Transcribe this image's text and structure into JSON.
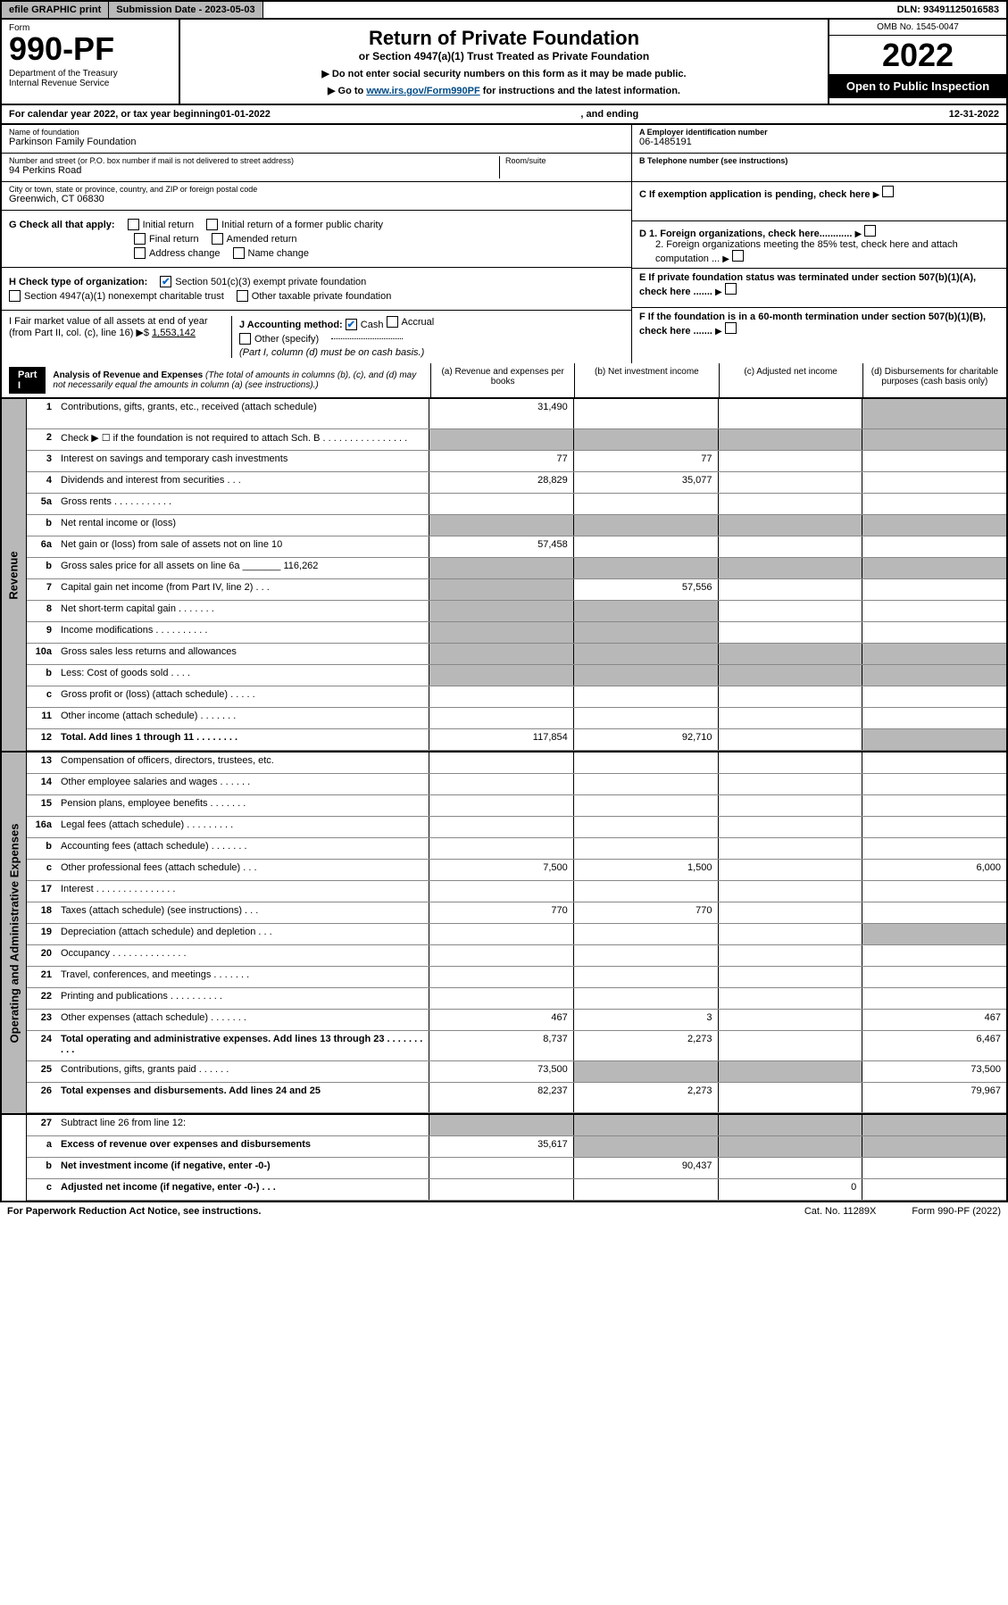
{
  "topbar": {
    "efile": "efile GRAPHIC print",
    "subdate_label": "Submission Date - 2023-05-03",
    "dln": "DLN: 93491125016583"
  },
  "header": {
    "form_label": "Form",
    "form_num": "990-PF",
    "dept": "Department of the Treasury\nInternal Revenue Service",
    "title": "Return of Private Foundation",
    "subtitle": "or Section 4947(a)(1) Trust Treated as Private Foundation",
    "instr1": "▶ Do not enter social security numbers on this form as it may be made public.",
    "instr2_pre": "▶ Go to ",
    "instr2_link": "www.irs.gov/Form990PF",
    "instr2_post": " for instructions and the latest information.",
    "omb": "OMB No. 1545-0047",
    "year": "2022",
    "open": "Open to Public Inspection"
  },
  "calyear": {
    "pre": "For calendar year 2022, or tax year beginning ",
    "begin": "01-01-2022",
    "mid": ", and ending ",
    "end": "12-31-2022"
  },
  "info": {
    "name_label": "Name of foundation",
    "name": "Parkinson Family Foundation",
    "addr_label": "Number and street (or P.O. box number if mail is not delivered to street address)",
    "addr": "94 Perkins Road",
    "room_label": "Room/suite",
    "city_label": "City or town, state or province, country, and ZIP or foreign postal code",
    "city": "Greenwich, CT  06830",
    "a_label": "A Employer identification number",
    "a_val": "06-1485191",
    "b_label": "B Telephone number (see instructions)",
    "c_label": "C If exemption application is pending, check here",
    "d1": "D 1. Foreign organizations, check here............",
    "d2": "2. Foreign organizations meeting the 85% test, check here and attach computation ...",
    "e": "E  If private foundation status was terminated under section 507(b)(1)(A), check here .......",
    "f": "F  If the foundation is in a 60-month termination under section 507(b)(1)(B), check here .......",
    "g_label": "G Check all that apply:",
    "g_opts": [
      "Initial return",
      "Initial return of a former public charity",
      "Final return",
      "Amended return",
      "Address change",
      "Name change"
    ],
    "h_label": "H Check type of organization:",
    "h_opts": [
      "Section 501(c)(3) exempt private foundation",
      "Section 4947(a)(1) nonexempt charitable trust",
      "Other taxable private foundation"
    ],
    "h_checked": 0,
    "i_label": "I Fair market value of all assets at end of year (from Part II, col. (c), line 16) ▶$",
    "i_val": "1,553,142",
    "j_label": "J Accounting method:",
    "j_opts": [
      "Cash",
      "Accrual",
      "Other (specify)"
    ],
    "j_checked": 0,
    "j_note": "(Part I, column (d) must be on cash basis.)"
  },
  "part1": {
    "label": "Part I",
    "title": "Analysis of Revenue and Expenses",
    "note": "(The total of amounts in columns (b), (c), and (d) may not necessarily equal the amounts in column (a) (see instructions).)",
    "cols": [
      "(a)  Revenue and expenses per books",
      "(b)  Net investment income",
      "(c)  Adjusted net income",
      "(d)  Disbursements for charitable purposes (cash basis only)"
    ]
  },
  "side_labels": [
    "Revenue",
    "Operating and Administrative Expenses"
  ],
  "rows": [
    {
      "n": "1",
      "d": "Contributions, gifts, grants, etc., received (attach schedule)",
      "a": "31,490",
      "tall": true
    },
    {
      "n": "2",
      "d": "Check ▶ ☐ if the foundation is not required to attach Sch. B   .   .   .   .   .   .   .   .   .   .   .   .   .   .   .   ."
    },
    {
      "n": "3",
      "d": "Interest on savings and temporary cash investments",
      "a": "77",
      "b": "77"
    },
    {
      "n": "4",
      "d": "Dividends and interest from securities    .    .    .",
      "a": "28,829",
      "b": "35,077"
    },
    {
      "n": "5a",
      "d": "Gross rents    .    .    .    .    .    .    .    .    .    .    ."
    },
    {
      "n": "b",
      "d": "Net rental income or (loss)"
    },
    {
      "n": "6a",
      "d": "Net gain or (loss) from sale of assets not on line 10",
      "a": "57,458"
    },
    {
      "n": "b",
      "d": "Gross sales price for all assets on line 6a _______ 116,262"
    },
    {
      "n": "7",
      "d": "Capital gain net income (from Part IV, line 2)   .   .   .",
      "b": "57,556"
    },
    {
      "n": "8",
      "d": "Net short-term capital gain   .   .   .   .   .   .   ."
    },
    {
      "n": "9",
      "d": "Income modifications  .   .   .   .   .   .   .   .   .   ."
    },
    {
      "n": "10a",
      "d": "Gross sales less returns and allowances"
    },
    {
      "n": "b",
      "d": "Less: Cost of goods sold    .    .    .    ."
    },
    {
      "n": "c",
      "d": "Gross profit or (loss) (attach schedule)    .    .    .    .    ."
    },
    {
      "n": "11",
      "d": "Other income (attach schedule)    .    .    .    .    .    .    ."
    },
    {
      "n": "12",
      "d": "Total. Add lines 1 through 11   .   .   .   .   .   .   .   .",
      "a": "117,854",
      "b": "92,710",
      "bold": true
    },
    {
      "n": "13",
      "d": "Compensation of officers, directors, trustees, etc.",
      "sec": 2
    },
    {
      "n": "14",
      "d": "Other employee salaries and wages   .   .   .   .   .   ."
    },
    {
      "n": "15",
      "d": "Pension plans, employee benefits   .   .   .   .   .   .   ."
    },
    {
      "n": "16a",
      "d": "Legal fees (attach schedule)  .   .   .   .   .   .   .   .   ."
    },
    {
      "n": "b",
      "d": "Accounting fees (attach schedule)  .   .   .   .   .   .   ."
    },
    {
      "n": "c",
      "d": "Other professional fees (attach schedule)    .    .    .",
      "a": "7,500",
      "b": "1,500",
      "dd": "6,000"
    },
    {
      "n": "17",
      "d": "Interest  .   .   .   .   .   .   .   .   .   .   .   .   .   .   ."
    },
    {
      "n": "18",
      "d": "Taxes (attach schedule) (see instructions)    .    .    .",
      "a": "770",
      "b": "770"
    },
    {
      "n": "19",
      "d": "Depreciation (attach schedule) and depletion    .    .    ."
    },
    {
      "n": "20",
      "d": "Occupancy  .   .   .   .   .   .   .   .   .   .   .   .   .   ."
    },
    {
      "n": "21",
      "d": "Travel, conferences, and meetings  .   .   .   .   .   .   ."
    },
    {
      "n": "22",
      "d": "Printing and publications  .   .   .   .   .   .   .   .   .   ."
    },
    {
      "n": "23",
      "d": "Other expenses (attach schedule)  .   .   .   .   .   .   .",
      "a": "467",
      "b": "3",
      "dd": "467"
    },
    {
      "n": "24",
      "d": "Total operating and administrative expenses. Add lines 13 through 23   .   .   .   .   .   .   .   .   .   .",
      "a": "8,737",
      "b": "2,273",
      "dd": "6,467",
      "bold": true,
      "tall": true
    },
    {
      "n": "25",
      "d": "Contributions, gifts, grants paid    .    .    .    .    .    .",
      "a": "73,500",
      "dd": "73,500"
    },
    {
      "n": "26",
      "d": "Total expenses and disbursements. Add lines 24 and 25",
      "a": "82,237",
      "b": "2,273",
      "dd": "79,967",
      "bold": true,
      "tall": true
    },
    {
      "n": "27",
      "d": "Subtract line 26 from line 12:",
      "sec": 3
    },
    {
      "n": "a",
      "d": "Excess of revenue over expenses and disbursements",
      "a": "35,617",
      "bold": true
    },
    {
      "n": "b",
      "d": "Net investment income (if negative, enter -0-)",
      "b": "90,437",
      "bold": true
    },
    {
      "n": "c",
      "d": "Adjusted net income (if negative, enter -0-)   .   .   .",
      "c": "0",
      "bold": true
    }
  ],
  "greycells": {
    "1": [
      "d"
    ],
    "2": [
      "a",
      "b",
      "c",
      "d"
    ],
    "5b": [
      "a",
      "b",
      "c",
      "d"
    ],
    "6b": [
      "a",
      "b",
      "c",
      "d"
    ],
    "7": [
      "a"
    ],
    "8": [
      "a",
      "b"
    ],
    "9": [
      "a",
      "b"
    ],
    "10a": [
      "a",
      "b",
      "c",
      "d"
    ],
    "10b": [
      "a",
      "b",
      "c",
      "d"
    ],
    "10c": [
      "b"
    ],
    "12": [
      "d"
    ],
    "19": [
      "d"
    ],
    "25": [
      "b",
      "c"
    ],
    "27": [
      "a",
      "b",
      "c",
      "d"
    ],
    "27a": [
      "b",
      "c",
      "d"
    ],
    "27b": [
      "a",
      "c",
      "d"
    ],
    "27c": [
      "a",
      "b",
      "d"
    ]
  },
  "footer": {
    "left": "For Paperwork Reduction Act Notice, see instructions.",
    "mid": "Cat. No. 11289X",
    "right": "Form 990-PF (2022)"
  }
}
